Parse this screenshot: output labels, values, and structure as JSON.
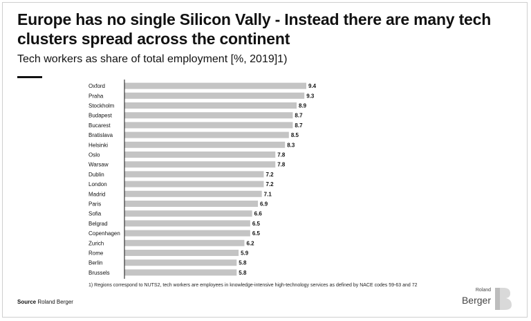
{
  "header": {
    "title": "Europe has no single Silicon Vally - Instead there are many tech clusters spread across the continent",
    "subtitle": "Tech workers as share of total employment [%, 2019]1)"
  },
  "footnote": "1) Regions correspond to NUTS2, tech workers are employees in knowledge-intensive high-technology services as defined by NACE codes 59-63 and 72",
  "source": {
    "label": "Source",
    "value": "Roland Berger"
  },
  "logo": {
    "small": "Roland",
    "big": "Berger",
    "icon": "roland-berger-b-logo"
  },
  "colors": {
    "bar": "#c4c4c4",
    "text": "#111111",
    "axis": "#111111"
  },
  "chart_data": {
    "type": "bar",
    "orientation": "horizontal",
    "categories": [
      "Oxford",
      "Praha",
      "Stockholm",
      "Budapest",
      "Bucarest",
      "Bratislava",
      "Helsinki",
      "Oslo",
      "Warsaw",
      "Dublin",
      "London",
      "Madrid",
      "Paris",
      "Sofia",
      "Belgrad",
      "Copenhagen",
      "Zurich",
      "Rome",
      "Berlin",
      "Brussels"
    ],
    "values": [
      9.4,
      9.3,
      8.9,
      8.7,
      8.7,
      8.5,
      8.3,
      7.8,
      7.8,
      7.2,
      7.2,
      7.1,
      6.9,
      6.6,
      6.5,
      6.5,
      6.2,
      5.9,
      5.8,
      5.8
    ],
    "value_labels": [
      "9.4",
      "9.3",
      "8.9",
      "8.7",
      "8.7",
      "8.5",
      "8.3",
      "7.8",
      "7.8",
      "7.2",
      "7.2",
      "7.1",
      "6.9",
      "6.6",
      "6.5",
      "6.5",
      "6.2",
      "5.9",
      "5.8",
      "5.8"
    ],
    "xlim": [
      0,
      9.4
    ],
    "grid": false,
    "legend": "none"
  }
}
